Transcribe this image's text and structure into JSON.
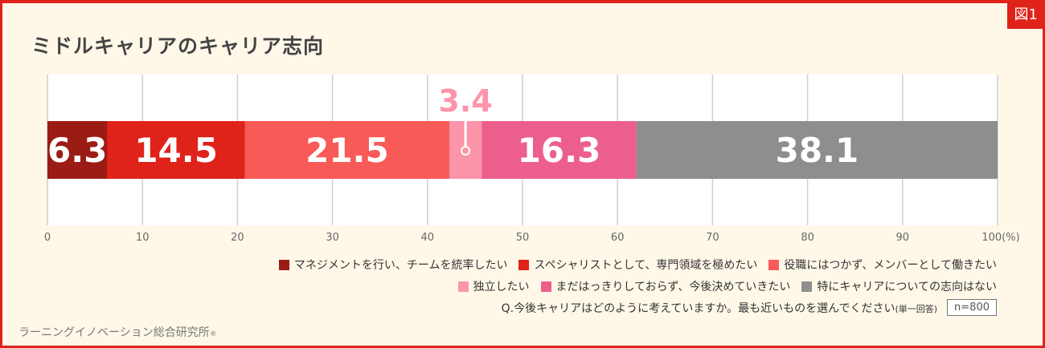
{
  "figure_label": "図1",
  "chart_data": {
    "type": "bar",
    "orientation": "horizontal-stacked",
    "title": "ミドルキャリアのキャリア志向",
    "xlim": [
      0,
      100
    ],
    "xunit": "(%)",
    "ticks": [
      "0",
      "10",
      "20",
      "30",
      "40",
      "50",
      "60",
      "70",
      "80",
      "90",
      "100"
    ],
    "grid": true,
    "series": [
      {
        "name": "マネジメントを行い、チームを統率したい",
        "value": 6.3,
        "color": "#9b1c14"
      },
      {
        "name": "スペシャリストとして、専門領域を極めたい",
        "value": 14.5,
        "color": "#e0231a"
      },
      {
        "name": "役職にはつかず、メンバーとして働きたい",
        "value": 21.5,
        "color": "#f85a57"
      },
      {
        "name": "独立したい",
        "value": 3.4,
        "color": "#fc94aa"
      },
      {
        "name": "まだはっきりしておらず、今後決めていきたい",
        "value": 16.3,
        "color": "#ec5f8c"
      },
      {
        "name": "特にキャリアについての志向はない",
        "value": 38.1,
        "color": "#8e8e8e"
      }
    ],
    "legend_position": "bottom-right"
  },
  "question": "Q.今後キャリアはどのように考えていますか。最も近いものを選んでください",
  "question_note": "(単一回答)",
  "sample_size": "n=800",
  "source": "ラーニングイノベーション総合研究所",
  "source_mark": "®"
}
